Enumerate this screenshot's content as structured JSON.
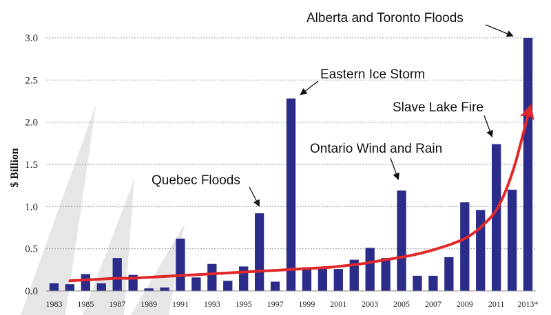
{
  "chart_data": {
    "type": "bar",
    "ylabel": "$ Billion",
    "ylim": [
      0,
      3.0
    ],
    "yticks": [
      0.0,
      0.5,
      1.0,
      1.5,
      2.0,
      2.5,
      3.0
    ],
    "ytick_labels": [
      "0.0",
      "0.5",
      "1.0",
      "1.5",
      "2.0",
      "2.5",
      "3.0"
    ],
    "grid": "horizontal-dotted",
    "bar_color": "#2b2b8a",
    "trend_color": "#e0282a",
    "categories": [
      "1983",
      "1984",
      "1985",
      "1986",
      "1987",
      "1988",
      "1989",
      "1990",
      "1991",
      "1992",
      "1993",
      "1994",
      "1995",
      "1996",
      "1997",
      "1998",
      "1999",
      "2000",
      "2001",
      "2002",
      "2003",
      "2004",
      "2005",
      "2006",
      "2007",
      "2008",
      "2009",
      "2010",
      "2011",
      "2012",
      "2013*"
    ],
    "xtick_labels": [
      "1983",
      "1985",
      "1987",
      "1989",
      "1991",
      "1993",
      "1995",
      "1997",
      "1999",
      "2001",
      "2003",
      "2005",
      "2007",
      "2009",
      "2011",
      "2013*"
    ],
    "values": [
      0.09,
      0.08,
      0.2,
      0.09,
      0.39,
      0.19,
      0.03,
      0.04,
      0.62,
      0.16,
      0.32,
      0.12,
      0.29,
      0.92,
      0.11,
      2.28,
      0.28,
      0.27,
      0.26,
      0.37,
      0.51,
      0.39,
      1.19,
      0.18,
      0.18,
      0.4,
      1.05,
      0.96,
      1.74,
      1.2,
      3.0
    ],
    "trend": [
      0.12,
      0.13,
      0.14,
      0.15,
      0.15,
      0.16,
      0.17,
      0.18,
      0.19,
      0.2,
      0.21,
      0.22,
      0.23,
      0.24,
      0.25,
      0.26,
      0.27,
      0.28,
      0.3,
      0.32,
      0.35,
      0.38,
      0.41,
      0.45,
      0.5,
      0.56,
      0.64,
      0.78,
      1.0,
      1.45,
      2.13
    ],
    "annotations": [
      {
        "text": "Quebec Floods",
        "category": "1996"
      },
      {
        "text": "Eastern Ice Storm",
        "category": "1998"
      },
      {
        "text": "Ontario Wind and Rain",
        "category": "2005"
      },
      {
        "text": "Slave Lake Fire",
        "category": "2011"
      },
      {
        "text": "Alberta and Toronto Floods",
        "category": "2013*"
      }
    ]
  }
}
